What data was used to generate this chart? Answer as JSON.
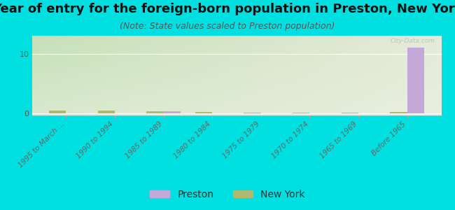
{
  "title": "Year of entry for the foreign-born population in Preston, New York",
  "subtitle": "(Note: State values scaled to Preston population)",
  "background_color": "#00e0e0",
  "categories": [
    "1995 to March ...",
    "1990 to 1994",
    "1985 to 1989",
    "1980 to 1984",
    "1975 to 1979",
    "1970 to 1974",
    "1965 to 1969",
    "Before 1965"
  ],
  "preston_values": [
    0,
    0,
    0.4,
    0,
    0,
    0,
    0,
    11
  ],
  "newyork_values": [
    0.5,
    0.5,
    0.45,
    0.3,
    0.2,
    0.18,
    0.13,
    0.28
  ],
  "preston_color": "#c4a8d8",
  "newyork_color": "#b0b870",
  "ylim": [
    -0.3,
    13
  ],
  "yticks": [
    0,
    10
  ],
  "bar_width": 0.35,
  "title_fontsize": 13,
  "subtitle_fontsize": 9,
  "tick_fontsize": 7.5,
  "legend_fontsize": 10,
  "watermark": "City-Data.com"
}
